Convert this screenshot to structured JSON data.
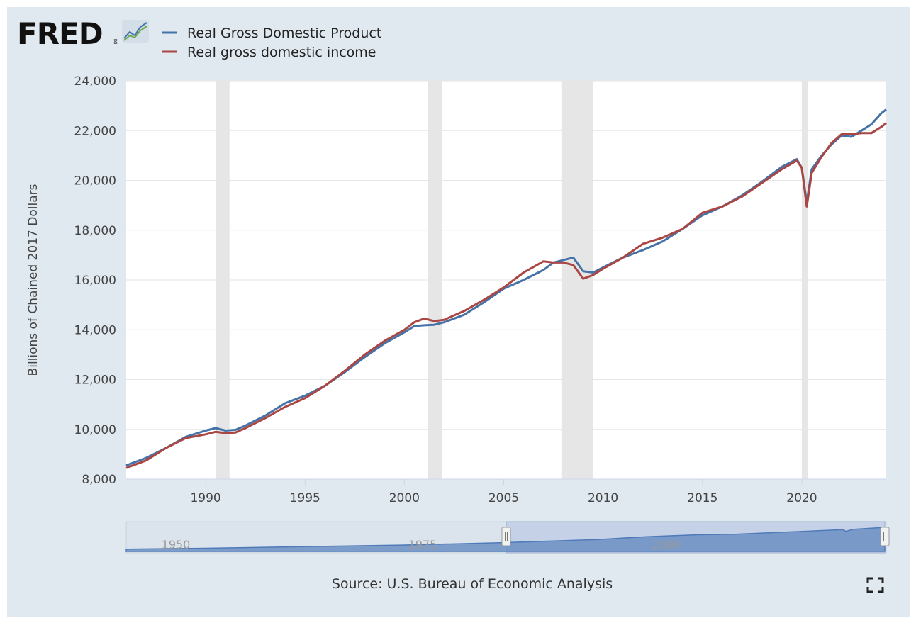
{
  "logo": {
    "text": "FRED",
    "registered": "®"
  },
  "legend": {
    "gdp_label": "Real Gross Domestic Product",
    "gdi_label": "Real gross domestic income"
  },
  "colors": {
    "gdp": "#4572a7",
    "gdi": "#aa4643",
    "recession": "#e6e6e6",
    "navigator": "#6b8fc3",
    "background": "#e1e9f0"
  },
  "source": "Source: U.S. Bureau of Economic Analysis",
  "navigator": {
    "tick_labels": [
      "1950",
      "1975",
      "2000"
    ]
  },
  "icons": {
    "fullscreen": "fullscreen-icon",
    "logo_graph": "line-graph-icon"
  },
  "chart_data": {
    "type": "line",
    "title": "",
    "xlabel": "",
    "ylabel": "Billions of Chained 2017 Dollars",
    "xlim": [
      1986.0,
      2024.25
    ],
    "ylim": [
      8000,
      24000
    ],
    "y_ticks": [
      "8,000",
      "10,000",
      "12,000",
      "14,000",
      "16,000",
      "18,000",
      "20,000",
      "22,000",
      "24,000"
    ],
    "x_ticks": [
      "1990",
      "1995",
      "2000",
      "2005",
      "2010",
      "2015",
      "2020"
    ],
    "recessions": [
      [
        1990.5,
        1991.2
      ],
      [
        2001.2,
        2001.9
      ],
      [
        2007.9,
        2009.5
      ],
      [
        2020.0,
        2020.3
      ]
    ],
    "series": [
      {
        "name": "Real Gross Domestic Product",
        "color": "#4572a7",
        "x": [
          1986.0,
          1987.0,
          1988.0,
          1989.0,
          1990.0,
          1990.5,
          1991.0,
          1991.5,
          1992.0,
          1993.0,
          1994.0,
          1995.0,
          1996.0,
          1997.0,
          1998.0,
          1999.0,
          2000.0,
          2000.5,
          2001.0,
          2001.5,
          2002.0,
          2003.0,
          2004.0,
          2005.0,
          2006.0,
          2007.0,
          2007.5,
          2008.0,
          2008.5,
          2009.0,
          2009.5,
          2010.0,
          2011.0,
          2012.0,
          2013.0,
          2014.0,
          2015.0,
          2016.0,
          2017.0,
          2018.0,
          2019.0,
          2019.75,
          2020.0,
          2020.25,
          2020.5,
          2021.0,
          2021.5,
          2022.0,
          2022.5,
          2023.0,
          2023.5,
          2024.0,
          2024.25
        ],
        "values": [
          8550,
          8850,
          9250,
          9700,
          9950,
          10050,
          9950,
          9980,
          10150,
          10550,
          11050,
          11350,
          11750,
          12300,
          12900,
          13450,
          13900,
          14150,
          14180,
          14200,
          14300,
          14600,
          15100,
          15650,
          16000,
          16400,
          16700,
          16800,
          16900,
          16350,
          16300,
          16500,
          16900,
          17200,
          17550,
          18050,
          18600,
          18950,
          19400,
          19950,
          20550,
          20850,
          20500,
          19100,
          20450,
          21000,
          21450,
          21800,
          21750,
          22000,
          22250,
          22700,
          22850
        ]
      },
      {
        "name": "Real gross domestic income",
        "color": "#aa4643",
        "x": [
          1986.0,
          1987.0,
          1988.0,
          1989.0,
          1990.0,
          1990.5,
          1991.0,
          1991.5,
          1992.0,
          1993.0,
          1994.0,
          1995.0,
          1996.0,
          1997.0,
          1998.0,
          1999.0,
          2000.0,
          2000.5,
          2001.0,
          2001.5,
          2002.0,
          2003.0,
          2004.0,
          2005.0,
          2006.0,
          2007.0,
          2007.5,
          2008.0,
          2008.5,
          2009.0,
          2009.5,
          2010.0,
          2011.0,
          2012.0,
          2013.0,
          2014.0,
          2015.0,
          2016.0,
          2017.0,
          2018.0,
          2019.0,
          2019.75,
          2020.0,
          2020.25,
          2020.5,
          2021.0,
          2021.5,
          2022.0,
          2022.5,
          2023.0,
          2023.5,
          2024.0,
          2024.25
        ],
        "values": [
          8450,
          8750,
          9250,
          9650,
          9800,
          9900,
          9850,
          9870,
          10050,
          10450,
          10900,
          11250,
          11750,
          12350,
          13000,
          13550,
          14000,
          14300,
          14450,
          14350,
          14400,
          14750,
          15200,
          15700,
          16300,
          16750,
          16700,
          16700,
          16600,
          16050,
          16200,
          16450,
          16900,
          17450,
          17700,
          18050,
          18700,
          18950,
          19350,
          19900,
          20450,
          20800,
          20500,
          18950,
          20300,
          20950,
          21500,
          21850,
          21850,
          21900,
          21900,
          22150,
          22300
        ]
      }
    ]
  }
}
